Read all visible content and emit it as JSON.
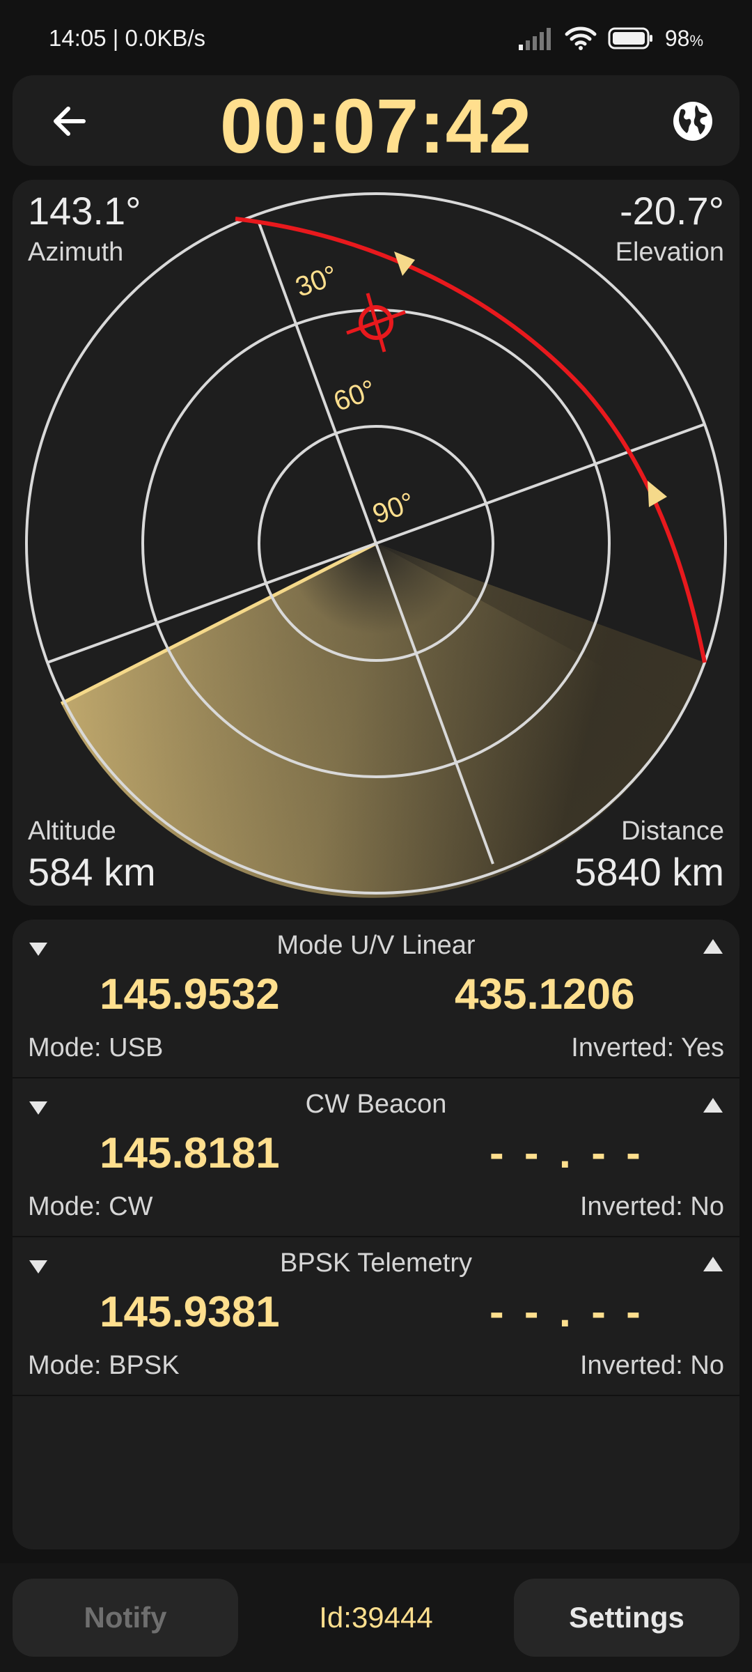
{
  "status_bar": {
    "time_speed": "14:05 | 0.0KB/s",
    "battery_level": "98",
    "battery_unit": "%"
  },
  "header": {
    "timer": "00:07:42"
  },
  "radar": {
    "azimuth_value": "143.1°",
    "azimuth_label": "Azimuth",
    "elevation_value": "-20.7°",
    "elevation_label": "Elevation",
    "altitude_label": "Altitude",
    "altitude_value": "584 km",
    "distance_label": "Distance",
    "distance_value": "5840 km",
    "ring_labels": [
      "30°",
      "60°",
      "90°"
    ],
    "colors": {
      "track": "#e8191d",
      "accent": "#ffdf8e",
      "grid": "#d9d9d9"
    }
  },
  "transmitters": [
    {
      "title": "Mode U/V Linear",
      "uplink": "145.9532",
      "downlink": "435.1206",
      "mode": "Mode: USB",
      "inverted": "Inverted: Yes"
    },
    {
      "title": "CW Beacon",
      "uplink": "145.8181",
      "downlink": "- - . - -",
      "mode": "Mode: CW",
      "inverted": "Inverted: No"
    },
    {
      "title": "BPSK Telemetry",
      "uplink": "145.9381",
      "downlink": "- - . - -",
      "mode": "Mode: BPSK",
      "inverted": "Inverted: No"
    }
  ],
  "bottom_bar": {
    "notify_label": "Notify",
    "satellite_id": "Id:39444",
    "settings_label": "Settings"
  }
}
